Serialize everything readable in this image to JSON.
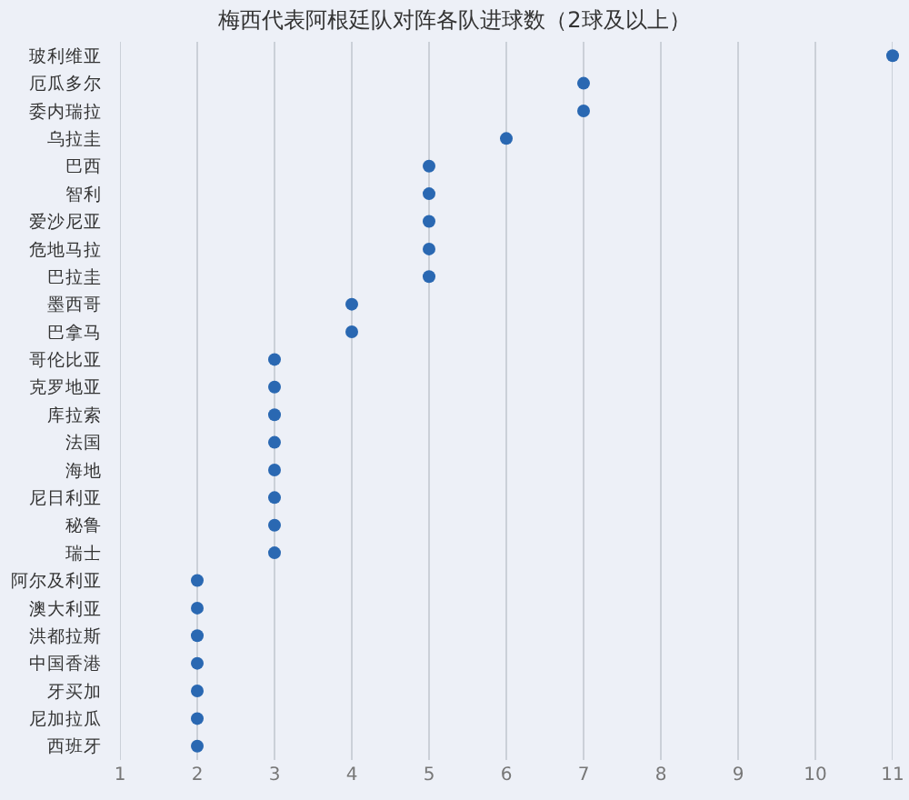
{
  "chart_data": {
    "type": "scatter",
    "title": "梅西代表阿根廷队对阵各队进球数（2球及以上）",
    "orientation": "horizontal",
    "categories": [
      "玻利维亚",
      "厄瓜多尔",
      "委内瑞拉",
      "乌拉圭",
      "巴西",
      "智利",
      "爱沙尼亚",
      "危地马拉",
      "巴拉圭",
      "墨西哥",
      "巴拿马",
      "哥伦比亚",
      "克罗地亚",
      "库拉索",
      "法国",
      "海地",
      "尼日利亚",
      "秘鲁",
      "瑞士",
      "阿尔及利亚",
      "澳大利亚",
      "洪都拉斯",
      "中国香港",
      "牙买加",
      "尼加拉瓜",
      "西班牙"
    ],
    "values": [
      11,
      7,
      7,
      6,
      5,
      5,
      5,
      5,
      5,
      4,
      4,
      3,
      3,
      3,
      3,
      3,
      3,
      3,
      3,
      2,
      2,
      2,
      2,
      2,
      2,
      2
    ],
    "color": "#2a68b2",
    "marker": "circle",
    "xlim": [
      1,
      11
    ],
    "xticks": [
      1,
      2,
      3,
      4,
      5,
      6,
      7,
      8,
      9,
      10,
      11
    ],
    "grid": "x"
  }
}
